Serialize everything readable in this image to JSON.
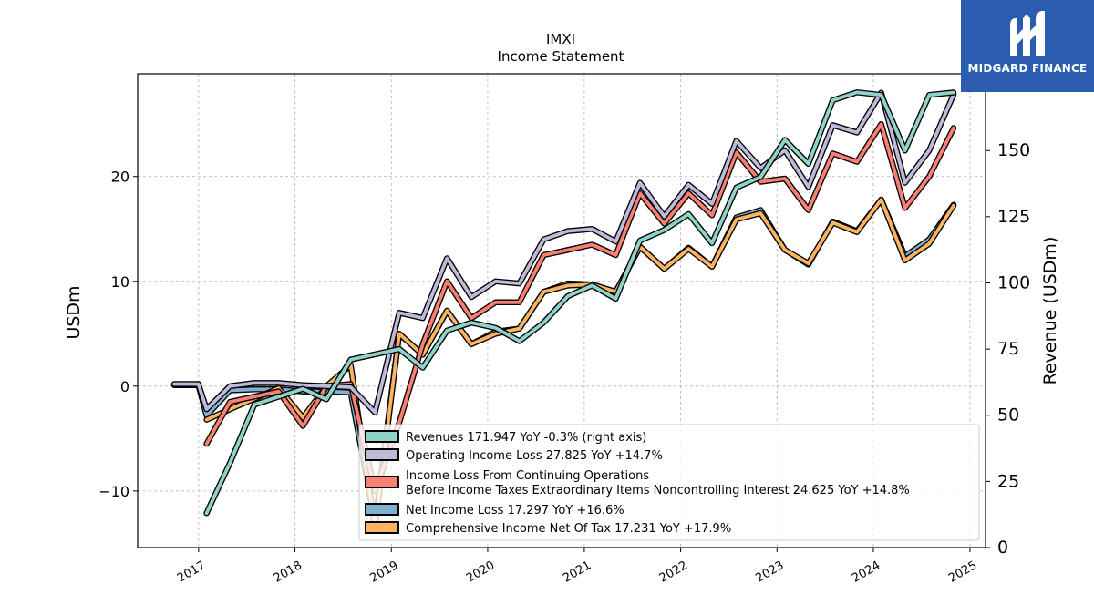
{
  "chart_data": {
    "type": "line",
    "title": "IMXI",
    "subtitle": "Income Statement",
    "ylabel_left": "USDm",
    "ylabel_right": "Revenue (USDm)",
    "xlabel": "",
    "x_ticks": [
      "2017",
      "2018",
      "2019",
      "2020",
      "2021",
      "2022",
      "2023",
      "2024",
      "2025"
    ],
    "y_left_ticks": [
      "−10",
      "0",
      "10",
      "20"
    ],
    "y_right_ticks": [
      "0",
      "25",
      "50",
      "75",
      "100",
      "125",
      "150",
      "175"
    ],
    "ylim_left": [
      -15.4,
      29.8
    ],
    "ylim_right": [
      0,
      179
    ],
    "xlim": [
      "2016-05-15",
      "2025-03-01"
    ],
    "grid": true,
    "legend_position": "lower-right",
    "series": [
      {
        "name": "Revenues",
        "legend_label": "Revenues  171.947 YoY -0.3% (right axis)",
        "axis": "right",
        "color": "#8dd3c7",
        "x": [
          "2017-01-31",
          "2017-04-30",
          "2017-07-31",
          "2017-10-31",
          "2018-01-31",
          "2018-04-30",
          "2018-07-31",
          "2018-10-31",
          "2019-01-31",
          "2019-04-30",
          "2019-07-31",
          "2019-10-31",
          "2020-01-31",
          "2020-04-30",
          "2020-07-31",
          "2020-10-31",
          "2021-01-31",
          "2021-04-30",
          "2021-07-31",
          "2021-10-31",
          "2022-01-31",
          "2022-04-30",
          "2022-07-31",
          "2022-10-31",
          "2023-01-31",
          "2023-04-30",
          "2023-07-31",
          "2023-10-31",
          "2024-01-31",
          "2024-04-30",
          "2024-07-31",
          "2024-10-31"
        ],
        "values": [
          13,
          32,
          54,
          57,
          60,
          56,
          71,
          73,
          75,
          68,
          82,
          85,
          83,
          78,
          85,
          95,
          99,
          94,
          116,
          120,
          126,
          115,
          136,
          140,
          154,
          145,
          169,
          172,
          171,
          150,
          171,
          171.947
        ]
      },
      {
        "name": "Operating Income Loss",
        "legend_label": "Operating Income Loss  27.825 YoY +14.7%",
        "axis": "left",
        "color": "#bebada",
        "x": [
          "2016-09-30",
          "2016-12-31",
          "2017-01-31",
          "2017-04-30",
          "2017-07-31",
          "2017-10-31",
          "2018-01-31",
          "2018-04-30",
          "2018-07-31",
          "2018-10-31",
          "2019-01-31",
          "2019-04-30",
          "2019-07-31",
          "2019-10-31",
          "2020-01-31",
          "2020-04-30",
          "2020-07-31",
          "2020-10-31",
          "2021-01-31",
          "2021-04-30",
          "2021-07-31",
          "2021-10-31",
          "2022-01-31",
          "2022-04-30",
          "2022-07-31",
          "2022-10-31",
          "2023-01-31",
          "2023-04-30",
          "2023-07-31",
          "2023-10-31",
          "2024-01-31",
          "2024-04-30",
          "2024-07-31",
          "2024-10-31"
        ],
        "values": [
          0.2,
          0.2,
          -2.2,
          0.0,
          0.3,
          0.3,
          0.1,
          0.0,
          -0.1,
          -2.5,
          7.0,
          6.5,
          12.2,
          8.5,
          10.0,
          9.8,
          14.0,
          14.8,
          15.0,
          13.8,
          19.4,
          16.2,
          19.2,
          17.4,
          23.4,
          20.8,
          22.5,
          19.0,
          24.9,
          24.2,
          28.0,
          19.4,
          22.5,
          27.825
        ]
      },
      {
        "name": "Income Loss From Continuing Operations Before Income Taxes Extraordinary Items Noncontrolling Interest",
        "legend_label_line1": "Income Loss From Continuing Operations",
        "legend_label_line2": "Before Income Taxes Extraordinary Items Noncontrolling Interest  24.625 YoY +14.8%",
        "axis": "left",
        "color": "#fb8072",
        "x": [
          "2017-01-31",
          "2017-04-30",
          "2017-07-31",
          "2017-10-31",
          "2018-01-31",
          "2018-04-30",
          "2018-07-31",
          "2018-10-31",
          "2019-01-31",
          "2019-04-30",
          "2019-07-31",
          "2019-10-31",
          "2020-01-31",
          "2020-04-30",
          "2020-07-31",
          "2020-10-31",
          "2021-01-31",
          "2021-04-30",
          "2021-07-31",
          "2021-10-31",
          "2022-01-31",
          "2022-04-30",
          "2022-07-31",
          "2022-10-31",
          "2023-01-31",
          "2023-04-30",
          "2023-07-31",
          "2023-10-31",
          "2024-01-31",
          "2024-04-30",
          "2024-07-31",
          "2024-10-31"
        ],
        "values": [
          -5.5,
          -1.5,
          -1.0,
          -0.5,
          -3.8,
          0.0,
          0.2,
          -10.0,
          -3.5,
          4.0,
          10.0,
          6.5,
          8.0,
          8.0,
          12.5,
          13.0,
          13.5,
          12.5,
          18.4,
          15.5,
          18.4,
          16.3,
          22.3,
          19.5,
          19.8,
          16.8,
          22.2,
          21.4,
          25.0,
          17.0,
          20.0,
          24.625
        ]
      },
      {
        "name": "Net Income Loss",
        "legend_label": "Net Income Loss  17.297 YoY +16.6%",
        "axis": "left",
        "color": "#80b1d3",
        "x": [
          "2016-09-30",
          "2016-12-31",
          "2017-01-31",
          "2017-04-30",
          "2017-07-31",
          "2017-10-31",
          "2018-01-31",
          "2018-04-30",
          "2018-07-31",
          "2018-10-31",
          "2019-01-31",
          "2019-04-30",
          "2019-07-31",
          "2019-10-31",
          "2020-01-31",
          "2020-04-30",
          "2020-07-31",
          "2020-10-31",
          "2021-01-31",
          "2021-04-30",
          "2021-07-31",
          "2021-10-31",
          "2022-01-31",
          "2022-04-30",
          "2022-07-31",
          "2022-10-31",
          "2023-01-31",
          "2023-04-30",
          "2023-07-31",
          "2023-10-31",
          "2024-01-31",
          "2024-04-30",
          "2024-07-31",
          "2024-10-31"
        ],
        "values": [
          0.1,
          0.1,
          -2.8,
          -0.4,
          -0.3,
          -0.3,
          -0.5,
          -0.5,
          -0.6,
          -13.0,
          5.0,
          3.0,
          7.2,
          4.0,
          5.2,
          5.5,
          9.0,
          9.8,
          9.7,
          9.0,
          13.3,
          11.2,
          13.2,
          11.4,
          16.1,
          16.8,
          13.0,
          11.6,
          15.7,
          14.8,
          17.8,
          12.4,
          14.0,
          17.297
        ]
      },
      {
        "name": "Comprehensive Income Net Of Tax",
        "legend_label": "Comprehensive Income Net Of Tax  17.231 YoY +17.9%",
        "axis": "left",
        "color": "#fdb462",
        "x": [
          "2017-01-31",
          "2017-04-30",
          "2017-07-31",
          "2017-10-31",
          "2018-01-31",
          "2018-04-30",
          "2018-07-31",
          "2018-10-31",
          "2019-01-31",
          "2019-04-30",
          "2019-07-31",
          "2019-10-31",
          "2020-01-31",
          "2020-04-30",
          "2020-07-31",
          "2020-10-31",
          "2021-01-31",
          "2021-04-30",
          "2021-07-31",
          "2021-10-31",
          "2022-01-31",
          "2022-04-30",
          "2022-07-31",
          "2022-10-31",
          "2023-01-31",
          "2023-04-30",
          "2023-07-31",
          "2023-10-31",
          "2024-01-31",
          "2024-04-30",
          "2024-07-31",
          "2024-10-31"
        ],
        "values": [
          -3.2,
          -2.2,
          -1.2,
          -0.2,
          -3.0,
          0.0,
          2.0,
          -13.5,
          5.0,
          3.0,
          7.2,
          4.0,
          5.0,
          5.5,
          9.0,
          9.6,
          9.7,
          9.0,
          13.3,
          11.2,
          13.1,
          11.4,
          15.9,
          16.5,
          13.0,
          11.7,
          15.6,
          14.7,
          17.8,
          12.0,
          13.6,
          17.231
        ]
      }
    ]
  },
  "logo": {
    "text": "MIDGARD FINANCE",
    "background": "#2a5db0",
    "icon": "midgard-logo-icon"
  }
}
